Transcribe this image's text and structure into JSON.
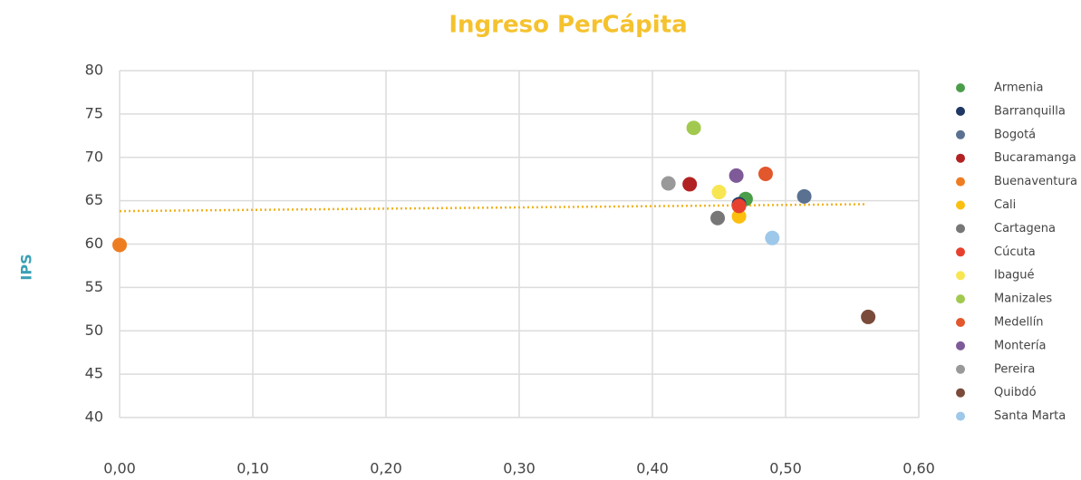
{
  "chart_data": {
    "type": "scatter",
    "title": "Ingreso PerCápita",
    "y_label": "IPS",
    "xlim": [
      0,
      0.6
    ],
    "ylim": [
      40,
      80
    ],
    "xticks": [
      {
        "value": 0,
        "label": "0,00"
      },
      {
        "value": 0.1,
        "label": "0,10"
      },
      {
        "value": 0.2,
        "label": "0,20"
      },
      {
        "value": 0.3,
        "label": "0,30"
      },
      {
        "value": 0.4,
        "label": "0,40"
      },
      {
        "value": 0.5,
        "label": "0,50"
      },
      {
        "value": 0.6,
        "label": "0,60"
      }
    ],
    "yticks": [
      40,
      45,
      50,
      55,
      60,
      65,
      70,
      75,
      80
    ],
    "grid": true,
    "legend": "right",
    "trendline": {
      "color": "#f0b323",
      "x": [
        0,
        0.56
      ],
      "values": [
        63.8,
        64.6
      ]
    },
    "series": [
      {
        "name": "Armenia",
        "color": "#4a9e4a",
        "x": [
          0.47
        ],
        "values": [
          65.2
        ]
      },
      {
        "name": "Barranquilla",
        "color": "#1f3864",
        "x": [
          0.465
        ],
        "values": [
          64.6
        ]
      },
      {
        "name": "Bogotá",
        "color": "#5a7191",
        "x": [
          0.514
        ],
        "values": [
          65.5
        ]
      },
      {
        "name": "Bucaramanga",
        "color": "#b22222",
        "x": [
          0.428
        ],
        "values": [
          66.9
        ]
      },
      {
        "name": "Buenaventura",
        "color": "#ee7d22",
        "x": [
          0
        ],
        "values": [
          59.9
        ]
      },
      {
        "name": "Cali",
        "color": "#fcbf10",
        "x": [
          0.465
        ],
        "values": [
          63.2
        ]
      },
      {
        "name": "Cartagena",
        "color": "#777777",
        "x": [
          0.449
        ],
        "values": [
          63.0
        ]
      },
      {
        "name": "Cúcuta",
        "color": "#e8402f",
        "x": [
          0.465
        ],
        "values": [
          64.4
        ]
      },
      {
        "name": "Ibagué",
        "color": "#f7e652",
        "x": [
          0.45
        ],
        "values": [
          66.0
        ]
      },
      {
        "name": "Manizales",
        "color": "#a2c94f",
        "x": [
          0.431
        ],
        "values": [
          73.4
        ]
      },
      {
        "name": "Medellín",
        "color": "#e2572b",
        "x": [
          0.485
        ],
        "values": [
          68.1
        ]
      },
      {
        "name": "Montería",
        "color": "#7e5a98",
        "x": [
          0.463
        ],
        "values": [
          67.9
        ]
      },
      {
        "name": "Pereira",
        "color": "#999999",
        "x": [
          0.412
        ],
        "values": [
          67.0
        ]
      },
      {
        "name": "Quibdó",
        "color": "#7a4b3a",
        "x": [
          0.562
        ],
        "values": [
          51.6
        ]
      },
      {
        "name": "Santa Marta",
        "color": "#9dc8ea",
        "x": [
          0.49
        ],
        "values": [
          60.7
        ]
      }
    ]
  }
}
